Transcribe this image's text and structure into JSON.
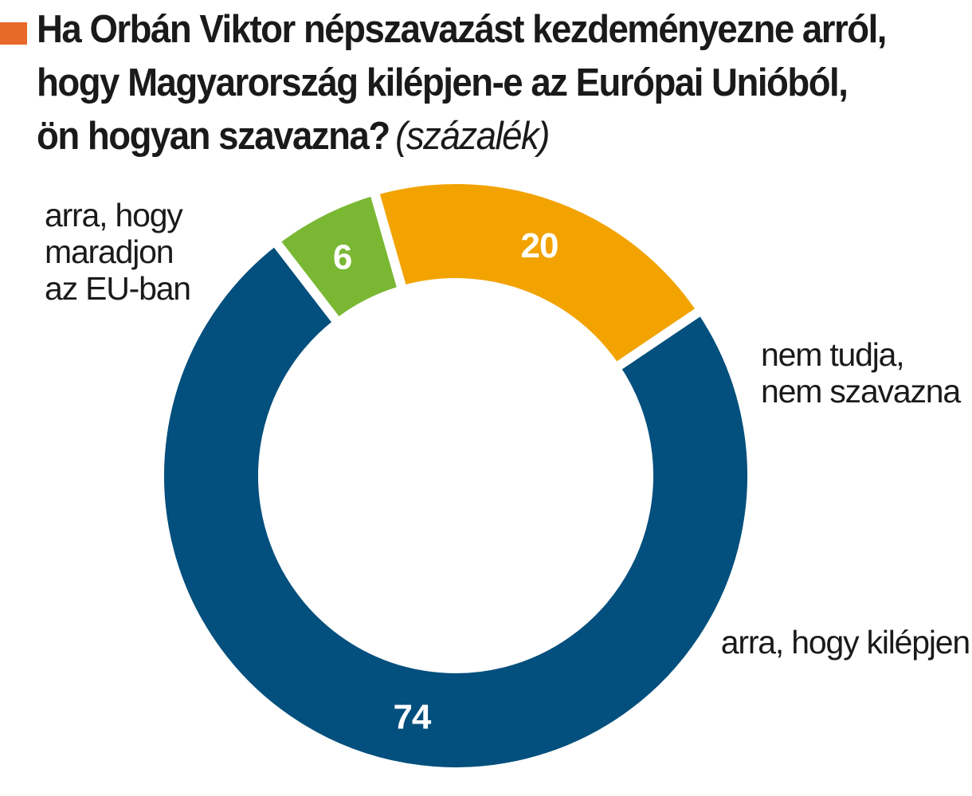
{
  "title": {
    "text": "Ha Orbán Viktor népszavazást kezdeményezne arról, hogy Magyarország kilépjen-e az Európai Unióból, ön hogyan szavazna?",
    "lines": [
      "Ha Orbán Viktor népszavazást kezdeményezne arról,",
      "hogy Magyarország kilépjen-e az Európai Unióból,",
      "ön hogyan szavazna?"
    ],
    "unit": "(százalék)",
    "marker_color": "#e8692a"
  },
  "chart_data": {
    "type": "pie",
    "variant": "donut",
    "title": "Ha Orbán Viktor népszavazást kezdeményezne arról, hogy Magyarország kilépjen-e az Európai Unióból, ön hogyan szavazna?",
    "unit": "százalék",
    "slices": [
      {
        "label": "arra, hogy maradjon az EU-ban",
        "label_lines": [
          "arra, hogy",
          "maradjon",
          "az EU-ban"
        ],
        "value": 74,
        "value_label": "74",
        "color": "#034f7d"
      },
      {
        "label": "nem tudja, nem szavazna",
        "label_lines": [
          "nem tudja,",
          "nem szavazna"
        ],
        "value": 6,
        "value_label": "6",
        "color": "#7ab834"
      },
      {
        "label": "arra, hogy kilépjen",
        "label_lines": [
          "arra, hogy kilépjen"
        ],
        "value": 20,
        "value_label": "20",
        "color": "#f2a300"
      }
    ]
  }
}
